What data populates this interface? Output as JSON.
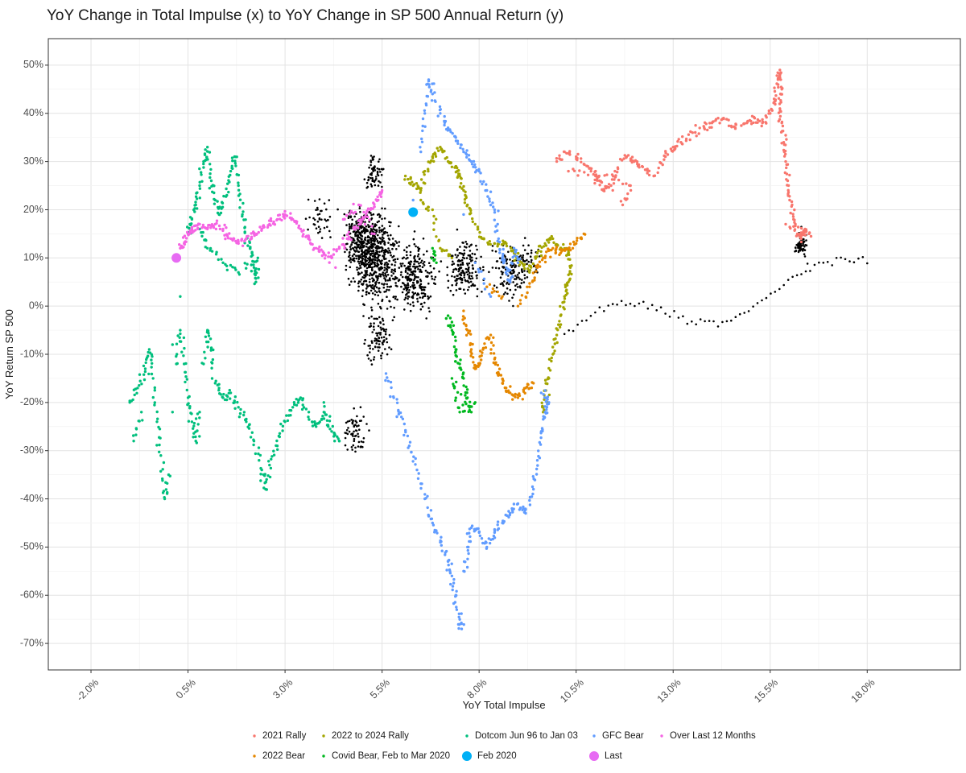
{
  "chart_data": {
    "type": "scatter",
    "title": "YoY Change in Total Impulse (x) to YoY Change in SP 500 Annual Return (y)",
    "xlabel": "YoY Total Impulse",
    "ylabel": "YoY Return SP 500",
    "xlim": [
      -3.1,
      20.4
    ],
    "ylim": [
      -75.5,
      55.5
    ],
    "x_ticks": [
      -2.0,
      0.5,
      3.0,
      5.5,
      8.0,
      10.5,
      13.0,
      15.5,
      18.0
    ],
    "x_tick_labels": [
      "-2.0%",
      "0.5%",
      "3.0%",
      "5.5%",
      "8.0%",
      "10.5%",
      "13.0%",
      "15.5%",
      "18.0%"
    ],
    "y_ticks": [
      -70,
      -60,
      -50,
      -40,
      -30,
      -20,
      -10,
      0,
      10,
      20,
      30,
      40,
      50
    ],
    "y_tick_labels": [
      "-70%",
      "-60%",
      "-50%",
      "-40%",
      "-30%",
      "-20%",
      "-10%",
      "0%",
      "10%",
      "20%",
      "30%",
      "40%",
      "50%"
    ],
    "grid": true,
    "legend_position": "bottom",
    "legend": [
      {
        "name": "2021 Rally",
        "color": "#F8766D",
        "shape": "small"
      },
      {
        "name": "2022 to 2024 Rally",
        "color": "#A3A500",
        "shape": "small"
      },
      {
        "name": "Dotcom Jun 96 to Jan 03",
        "color": "#00BF7D",
        "shape": "small"
      },
      {
        "name": "GFC Bear",
        "color": "#619CFF",
        "shape": "small"
      },
      {
        "name": "Over Last 12 Months",
        "color": "#F564E3",
        "shape": "small"
      },
      {
        "name": "2022 Bear",
        "color": "#E58700",
        "shape": "small"
      },
      {
        "name": "Covid Bear, Feb to Mar 2020",
        "color": "#00B81F",
        "shape": "small"
      },
      {
        "name": "Feb 2020",
        "color": "#00B0F6",
        "shape": "large"
      },
      {
        "name": "Last",
        "color": "#E76BF3",
        "shape": "large"
      }
    ],
    "background_points_color": "#000000",
    "series": [
      {
        "name": "2021 Rally",
        "color": "#F8766D",
        "points": [
          [
            10.0,
            30
          ],
          [
            10.2,
            32
          ],
          [
            10.5,
            31
          ],
          [
            10.8,
            29
          ],
          [
            11.0,
            27
          ],
          [
            11.1,
            26
          ],
          [
            11.2,
            24
          ],
          [
            11.4,
            25
          ],
          [
            11.5,
            28
          ],
          [
            11.8,
            31
          ],
          [
            12.0,
            30
          ],
          [
            12.2,
            29
          ],
          [
            12.5,
            27
          ],
          [
            12.8,
            31
          ],
          [
            13.0,
            33
          ],
          [
            13.2,
            34
          ],
          [
            13.5,
            36
          ],
          [
            13.8,
            37
          ],
          [
            14.0,
            38
          ],
          [
            14.3,
            39
          ],
          [
            14.6,
            37
          ],
          [
            14.9,
            38
          ],
          [
            15.1,
            39
          ],
          [
            15.3,
            38
          ],
          [
            15.5,
            40
          ],
          [
            15.6,
            43
          ],
          [
            15.7,
            47
          ],
          [
            15.75,
            49
          ],
          [
            15.8,
            45
          ],
          [
            15.75,
            41
          ],
          [
            15.8,
            38
          ],
          [
            15.85,
            34
          ],
          [
            15.9,
            30
          ],
          [
            15.95,
            26
          ],
          [
            16.0,
            22
          ],
          [
            16.1,
            18
          ],
          [
            16.2,
            15
          ],
          [
            16.3,
            14
          ],
          [
            16.4,
            16
          ],
          [
            16.5,
            15
          ],
          [
            15.9,
            17
          ],
          [
            11.7,
            21
          ],
          [
            11.9,
            25
          ],
          [
            11.0,
            28
          ],
          [
            10.3,
            28
          ]
        ]
      },
      {
        "name": "2022 to 2024 Rally",
        "color": "#A3A500",
        "points": [
          [
            6.1,
            27
          ],
          [
            6.3,
            25
          ],
          [
            6.5,
            24
          ],
          [
            6.6,
            28
          ],
          [
            6.8,
            31
          ],
          [
            7.0,
            33
          ],
          [
            7.2,
            30
          ],
          [
            7.4,
            29
          ],
          [
            7.5,
            27
          ],
          [
            7.6,
            24
          ],
          [
            7.7,
            21
          ],
          [
            7.9,
            17
          ],
          [
            8.1,
            14
          ],
          [
            8.4,
            13
          ],
          [
            8.7,
            13
          ],
          [
            8.9,
            11
          ],
          [
            9.1,
            9
          ],
          [
            9.3,
            7
          ],
          [
            9.5,
            11
          ],
          [
            9.7,
            13
          ],
          [
            9.9,
            14
          ],
          [
            10.1,
            12
          ],
          [
            10.3,
            11
          ],
          [
            10.35,
            8
          ],
          [
            10.3,
            5
          ],
          [
            10.2,
            2
          ],
          [
            10.1,
            -2
          ],
          [
            10.0,
            -6
          ],
          [
            9.9,
            -10
          ],
          [
            9.8,
            -15
          ],
          [
            9.7,
            -19
          ],
          [
            9.65,
            -22
          ],
          [
            7.3,
            10
          ],
          [
            7.0,
            12
          ],
          [
            6.8,
            20
          ],
          [
            6.5,
            22
          ]
        ]
      },
      {
        "name": "Dotcom Jun 96 to Jan 03",
        "color": "#00BF7D",
        "points": [
          [
            0.5,
            15
          ],
          [
            0.6,
            18
          ],
          [
            0.7,
            21
          ],
          [
            0.8,
            25
          ],
          [
            0.9,
            30
          ],
          [
            1.0,
            33
          ],
          [
            1.1,
            26
          ],
          [
            1.2,
            22
          ],
          [
            1.3,
            19
          ],
          [
            1.5,
            23
          ],
          [
            1.6,
            28
          ],
          [
            1.7,
            31
          ],
          [
            1.8,
            25
          ],
          [
            1.9,
            19
          ],
          [
            2.0,
            14
          ],
          [
            2.1,
            12
          ],
          [
            2.2,
            8
          ],
          [
            2.25,
            5
          ],
          [
            2.3,
            10
          ],
          [
            1.8,
            7
          ],
          [
            1.4,
            9
          ],
          [
            1.0,
            12
          ],
          [
            0.8,
            16
          ],
          [
            -1.0,
            -20
          ],
          [
            -0.8,
            -17
          ],
          [
            -0.6,
            -13
          ],
          [
            -0.5,
            -9
          ],
          [
            -0.4,
            -15
          ],
          [
            -0.3,
            -24
          ],
          [
            -0.2,
            -31
          ],
          [
            -0.1,
            -40
          ],
          [
            0.0,
            -35
          ],
          [
            0.1,
            -22
          ],
          [
            0.2,
            -12
          ],
          [
            0.3,
            -5
          ],
          [
            0.4,
            -12
          ],
          [
            0.5,
            -19
          ],
          [
            0.6,
            -24
          ],
          [
            0.7,
            -28
          ],
          [
            0.8,
            -22
          ],
          [
            0.9,
            -12
          ],
          [
            1.0,
            -5
          ],
          [
            1.1,
            -9
          ],
          [
            1.2,
            -16
          ],
          [
            1.4,
            -19
          ],
          [
            1.6,
            -18
          ],
          [
            1.8,
            -21
          ],
          [
            2.0,
            -24
          ],
          [
            2.2,
            -28
          ],
          [
            2.4,
            -34
          ],
          [
            2.5,
            -38
          ],
          [
            2.6,
            -33
          ],
          [
            2.8,
            -29
          ],
          [
            3.0,
            -24
          ],
          [
            3.2,
            -21
          ],
          [
            3.4,
            -19
          ],
          [
            3.6,
            -23
          ],
          [
            3.8,
            -25
          ],
          [
            4.0,
            -22
          ],
          [
            4.2,
            -26
          ],
          [
            4.4,
            -28
          ],
          [
            4.0,
            -20
          ],
          [
            0.3,
            2
          ],
          [
            0.1,
            -8
          ],
          [
            -0.7,
            -22
          ],
          [
            -0.9,
            -28
          ]
        ]
      },
      {
        "name": "GFC Bear",
        "color": "#619CFF",
        "points": [
          [
            5.6,
            -14
          ],
          [
            5.8,
            -19
          ],
          [
            6.0,
            -23
          ],
          [
            6.2,
            -29
          ],
          [
            6.4,
            -34
          ],
          [
            6.6,
            -40
          ],
          [
            6.8,
            -45
          ],
          [
            7.0,
            -49
          ],
          [
            7.2,
            -53
          ],
          [
            7.3,
            -56
          ],
          [
            7.4,
            -60
          ],
          [
            7.5,
            -65
          ],
          [
            7.55,
            -67
          ],
          [
            7.6,
            -55
          ],
          [
            7.7,
            -50
          ],
          [
            7.8,
            -46
          ],
          [
            8.0,
            -47
          ],
          [
            8.2,
            -50
          ],
          [
            8.4,
            -47
          ],
          [
            8.6,
            -45
          ],
          [
            8.8,
            -43
          ],
          [
            9.0,
            -41
          ],
          [
            9.2,
            -43
          ],
          [
            9.4,
            -38
          ],
          [
            9.5,
            -32
          ],
          [
            9.6,
            -26
          ],
          [
            9.7,
            -22
          ],
          [
            9.8,
            -20
          ],
          [
            9.6,
            -18
          ],
          [
            6.3,
            22
          ],
          [
            6.5,
            32
          ],
          [
            6.6,
            40
          ],
          [
            6.7,
            47
          ],
          [
            6.8,
            44
          ],
          [
            7.0,
            40
          ],
          [
            7.2,
            37
          ],
          [
            7.4,
            35
          ],
          [
            7.6,
            32
          ],
          [
            7.8,
            30
          ],
          [
            8.0,
            28
          ],
          [
            8.2,
            24
          ],
          [
            8.4,
            20
          ],
          [
            8.5,
            14
          ],
          [
            8.6,
            10
          ],
          [
            8.7,
            8
          ],
          [
            8.8,
            5
          ],
          [
            8.9,
            12
          ],
          [
            9.0,
            9
          ],
          [
            7.6,
            19
          ],
          [
            7.9,
            9
          ],
          [
            8.3,
            2
          ]
        ]
      },
      {
        "name": "Over Last 12 Months",
        "color": "#F564E3",
        "points": [
          [
            0.3,
            12
          ],
          [
            0.4,
            13
          ],
          [
            0.5,
            15
          ],
          [
            0.6,
            16
          ],
          [
            0.8,
            17
          ],
          [
            1.0,
            16
          ],
          [
            1.2,
            17
          ],
          [
            1.4,
            16
          ],
          [
            1.6,
            14
          ],
          [
            1.8,
            13
          ],
          [
            2.0,
            14
          ],
          [
            2.2,
            15
          ],
          [
            2.4,
            16
          ],
          [
            2.6,
            17
          ],
          [
            2.8,
            18
          ],
          [
            3.0,
            19
          ],
          [
            3.2,
            18
          ],
          [
            3.4,
            16
          ],
          [
            3.6,
            14
          ],
          [
            3.8,
            12
          ],
          [
            4.0,
            11
          ],
          [
            4.2,
            10
          ],
          [
            4.4,
            12
          ],
          [
            4.6,
            14
          ],
          [
            4.8,
            16
          ],
          [
            5.0,
            18
          ],
          [
            5.2,
            20
          ],
          [
            5.4,
            22
          ],
          [
            5.5,
            24
          ],
          [
            4.3,
            8
          ],
          [
            4.5,
            18
          ],
          [
            4.9,
            21
          ],
          [
            5.3,
            15
          ]
        ]
      },
      {
        "name": "2022 Bear",
        "color": "#E58700",
        "points": [
          [
            7.6,
            -1
          ],
          [
            7.7,
            -5
          ],
          [
            7.8,
            -9
          ],
          [
            7.9,
            -13
          ],
          [
            8.0,
            -12
          ],
          [
            8.1,
            -9
          ],
          [
            8.3,
            -6
          ],
          [
            8.4,
            -11
          ],
          [
            8.5,
            -14
          ],
          [
            8.6,
            -16
          ],
          [
            8.8,
            -18
          ],
          [
            9.0,
            -19
          ],
          [
            9.2,
            -17
          ],
          [
            9.4,
            -16
          ],
          [
            9.0,
            0
          ],
          [
            9.3,
            4
          ],
          [
            9.5,
            8
          ],
          [
            9.7,
            10
          ],
          [
            9.9,
            12
          ],
          [
            10.1,
            11
          ],
          [
            10.3,
            12
          ],
          [
            10.5,
            13
          ],
          [
            10.7,
            15
          ],
          [
            8.2,
            4
          ],
          [
            8.6,
            2
          ]
        ]
      },
      {
        "name": "Covid Bear, Feb to Mar 2020",
        "color": "#00B81F",
        "points": [
          [
            7.2,
            -2
          ],
          [
            7.3,
            -5
          ],
          [
            7.4,
            -9
          ],
          [
            7.5,
            -12
          ],
          [
            7.6,
            -15
          ],
          [
            7.7,
            -19
          ],
          [
            7.8,
            -22
          ],
          [
            7.3,
            -15
          ],
          [
            7.5,
            -22
          ],
          [
            7.9,
            -20
          ],
          [
            6.8,
            12
          ],
          [
            6.9,
            9
          ]
        ]
      },
      {
        "name": "Feb 2020",
        "color": "#00B0F6",
        "size": "large",
        "points": [
          [
            6.3,
            19.5
          ]
        ]
      },
      {
        "name": "Last",
        "color": "#E76BF3",
        "size": "large",
        "points": [
          [
            0.2,
            10
          ]
        ]
      }
    ]
  }
}
